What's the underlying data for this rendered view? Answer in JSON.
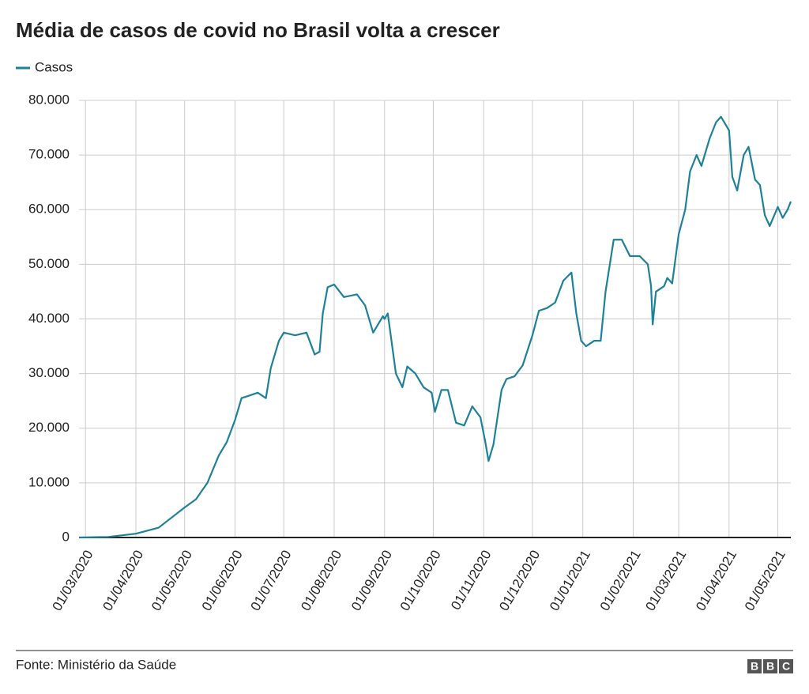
{
  "chart_data": {
    "type": "line",
    "title": "Média de casos de covid no Brasil volta a crescer",
    "source": "Fonte: Ministério da Saúde",
    "logo": [
      "B",
      "B",
      "C"
    ],
    "series": [
      {
        "name": "Casos",
        "color": "#1d8199",
        "x": [
          "26/02/2020",
          "15/03/2020",
          "01/04/2020",
          "15/04/2020",
          "01/05/2020",
          "08/05/2020",
          "15/05/2020",
          "22/05/2020",
          "27/05/2020",
          "01/06/2020",
          "05/06/2020",
          "10/06/2020",
          "15/06/2020",
          "20/06/2020",
          "23/06/2020",
          "28/06/2020",
          "01/07/2020",
          "08/07/2020",
          "15/07/2020",
          "20/07/2020",
          "23/07/2020",
          "25/07/2020",
          "28/07/2020",
          "01/08/2020",
          "07/08/2020",
          "15/08/2020",
          "20/08/2020",
          "25/08/2020",
          "31/08/2020",
          "01/09/2020",
          "03/09/2020",
          "08/09/2020",
          "12/09/2020",
          "15/09/2020",
          "20/09/2020",
          "25/09/2020",
          "30/09/2020",
          "02/10/2020",
          "06/10/2020",
          "10/10/2020",
          "15/10/2020",
          "20/10/2020",
          "25/10/2020",
          "30/10/2020",
          "02/11/2020",
          "04/11/2020",
          "07/11/2020",
          "12/11/2020",
          "15/11/2020",
          "20/11/2020",
          "25/11/2020",
          "01/12/2020",
          "05/12/2020",
          "10/12/2020",
          "15/12/2020",
          "20/12/2020",
          "25/12/2020",
          "28/12/2020",
          "31/12/2020",
          "03/01/2021",
          "08/01/2021",
          "12/01/2021",
          "15/01/2021",
          "20/01/2021",
          "25/01/2021",
          "30/01/2021",
          "05/02/2021",
          "10/02/2021",
          "12/02/2021",
          "13/02/2021",
          "15/02/2021",
          "20/02/2021",
          "22/02/2021",
          "25/02/2021",
          "01/03/2021",
          "05/03/2021",
          "08/03/2021",
          "12/03/2021",
          "15/03/2021",
          "20/03/2021",
          "24/03/2021",
          "27/03/2021",
          "30/03/2021",
          "01/04/2021",
          "03/04/2021",
          "06/04/2021",
          "10/04/2021",
          "13/04/2021",
          "17/04/2021",
          "20/04/2021",
          "23/04/2021",
          "26/04/2021",
          "01/05/2021",
          "04/05/2021",
          "07/05/2021",
          "09/05/2021"
        ],
        "values": [
          0,
          100,
          700,
          1800,
          5500,
          7000,
          10000,
          15000,
          17500,
          21500,
          25500,
          26000,
          26500,
          25500,
          31000,
          36000,
          37500,
          37000,
          37500,
          33500,
          34000,
          41000,
          45800,
          46300,
          44000,
          44500,
          42500,
          37500,
          40500,
          40000,
          41000,
          30000,
          27500,
          31300,
          30000,
          27500,
          26500,
          23000,
          27000,
          27000,
          21000,
          20500,
          24000,
          22000,
          17500,
          14000,
          17000,
          27000,
          29000,
          29500,
          31500,
          37000,
          41500,
          42000,
          43000,
          47000,
          48500,
          41000,
          36000,
          35000,
          36000,
          36000,
          45000,
          54500,
          54500,
          51500,
          51500,
          50000,
          46000,
          39000,
          45000,
          46000,
          47500,
          46500,
          55500,
          60000,
          67000,
          70000,
          68000,
          73000,
          76000,
          77000,
          75500,
          74500,
          66000,
          63500,
          70000,
          71500,
          65500,
          64500,
          59000,
          57000,
          60500,
          58500,
          60000,
          61500
        ]
      }
    ],
    "xlim": [
      "26/02/2020",
      "09/05/2021"
    ],
    "xticks": [
      "01/03/2020",
      "01/04/2020",
      "01/05/2020",
      "01/06/2020",
      "01/07/2020",
      "01/08/2020",
      "01/09/2020",
      "01/10/2020",
      "01/11/2020",
      "01/12/2020",
      "01/01/2021",
      "01/02/2021",
      "01/03/2021",
      "01/04/2021",
      "01/05/2021"
    ],
    "ylim": [
      0,
      80000
    ],
    "yticks": [
      0,
      {
        "value": 10000,
        "label": "10.000"
      },
      {
        "value": 20000,
        "label": "20.000"
      },
      {
        "value": 30000,
        "label": "30.000"
      },
      {
        "value": 40000,
        "label": "40.000"
      },
      {
        "value": 50000,
        "label": "50.000"
      },
      {
        "value": 60000,
        "label": "60.000"
      },
      {
        "value": 70000,
        "label": "70.000"
      },
      {
        "value": 80000,
        "label": "80.000"
      }
    ],
    "grid": true
  }
}
